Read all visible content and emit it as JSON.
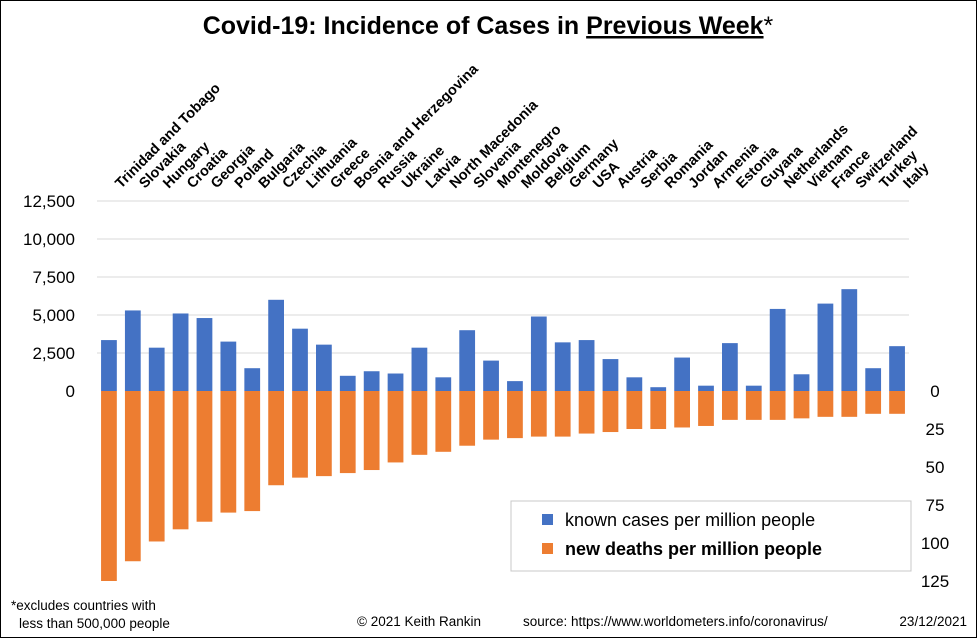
{
  "chart_data": {
    "type": "bar",
    "title": {
      "prefix": "Covid-19: Incidence of Cases in ",
      "underlined": "Previous Week",
      "suffix": "*"
    },
    "categories": [
      "Trinidad and Tobago",
      "Slovakia",
      "Hungary",
      "Croatia",
      "Georgia",
      "Poland",
      "Bulgaria",
      "Czechia",
      "Lithuania",
      "Greece",
      "Bosnia and Herzegovina",
      "Russia",
      "Ukraine",
      "Latvia",
      "North Macedonia",
      "Slovenia",
      "Montenegro",
      "Moldova",
      "Belgium",
      "Germany",
      "USA",
      "Austria",
      "Serbia",
      "Romania",
      "Jordan",
      "Armenia",
      "Estonia",
      "Guyana",
      "Netherlands",
      "Vietnam",
      "France",
      "Switzerland",
      "Turkey",
      "Italy"
    ],
    "series": [
      {
        "name": "known cases per million people",
        "color": "#4472C4",
        "axis": "left",
        "values": [
          3350,
          5300,
          2850,
          5100,
          4800,
          3250,
          1500,
          6000,
          4100,
          3050,
          1000,
          1300,
          1150,
          2850,
          900,
          4000,
          2000,
          650,
          4900,
          3200,
          3350,
          2100,
          900,
          250,
          2200,
          350,
          3150,
          350,
          5400,
          1100,
          5750,
          6700,
          1500,
          2950
        ]
      },
      {
        "name": "new deaths per million people",
        "color": "#ED7D31",
        "axis": "right",
        "values": [
          125,
          112,
          99,
          91,
          86,
          80,
          79,
          62,
          57,
          56,
          54,
          52,
          47,
          42,
          40,
          36,
          32,
          31,
          30,
          30,
          28,
          27,
          25,
          25,
          24,
          23,
          19,
          19,
          19,
          18,
          17,
          17,
          15,
          15
        ]
      }
    ],
    "left_axis": {
      "ylim": [
        -12500,
        12500
      ],
      "ticks": [
        0,
        2500,
        5000,
        7500,
        10000,
        12500
      ],
      "tick_labels": [
        "0",
        "2,500",
        "5,000",
        "7,500",
        "10,000",
        "12,500"
      ]
    },
    "right_axis": {
      "ylim": [
        125,
        0
      ],
      "inverted": true,
      "ticks": [
        0,
        25,
        50,
        75,
        100,
        125
      ],
      "tick_labels": [
        "0",
        "25",
        "50",
        "75",
        "100",
        "125"
      ]
    },
    "grid": true,
    "legend_position": "bottom-right",
    "xlabel": "",
    "ylabel": ""
  },
  "footer": {
    "note_line1": "*excludes countries with",
    "note_line2": "less than 500,000 people",
    "credit": "© 2021  Keith Rankin",
    "source": "source:  https://www.worldometers.info/coronavirus/",
    "date": "23/12/2021"
  }
}
